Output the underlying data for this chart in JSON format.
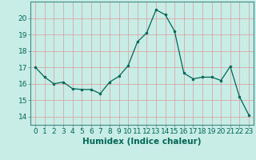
{
  "x": [
    0,
    1,
    2,
    3,
    4,
    5,
    6,
    7,
    8,
    9,
    10,
    11,
    12,
    13,
    14,
    15,
    16,
    17,
    18,
    19,
    20,
    21,
    22,
    23
  ],
  "y": [
    17.0,
    16.4,
    16.0,
    16.1,
    15.7,
    15.65,
    15.65,
    15.4,
    16.1,
    16.45,
    17.1,
    18.55,
    19.1,
    20.5,
    20.2,
    19.2,
    16.65,
    16.3,
    16.4,
    16.4,
    16.2,
    17.05,
    15.2,
    14.1
  ],
  "xlabel": "Humidex (Indice chaleur)",
  "ylim": [
    13.5,
    21.0
  ],
  "xlim": [
    -0.5,
    23.5
  ],
  "yticks": [
    14,
    15,
    16,
    17,
    18,
    19,
    20
  ],
  "xtick_labels": [
    "0",
    "1",
    "2",
    "3",
    "4",
    "5",
    "6",
    "7",
    "8",
    "9",
    "10",
    "11",
    "12",
    "13",
    "14",
    "15",
    "16",
    "17",
    "18",
    "19",
    "20",
    "21",
    "22",
    "23"
  ],
  "bg_color": "#c8ece6",
  "grid_color": "#dd9999",
  "line_color": "#006655",
  "marker_color": "#006655",
  "xlabel_fontsize": 7.5,
  "tick_fontsize": 6.5,
  "spine_color": "#448888"
}
